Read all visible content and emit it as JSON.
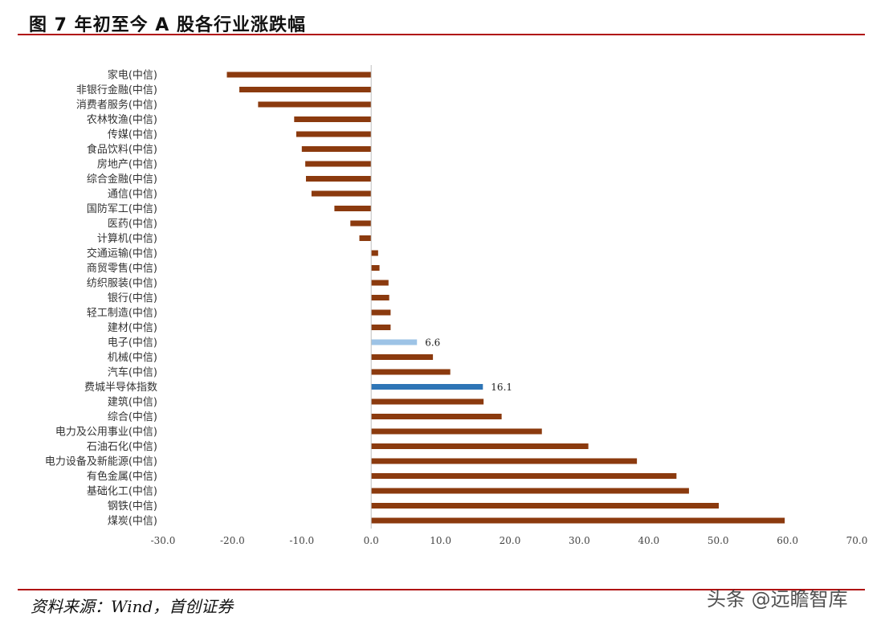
{
  "header": {
    "title": "图 7 年初至今 A 股各行业涨跌幅"
  },
  "footer": {
    "source": "资料来源：Wind，首创证券",
    "watermark": "头条 @远瞻智库"
  },
  "colors": {
    "bar": "#8B3A0E",
    "highlight_electronics": "#9DC3E6",
    "highlight_index": "#2E75B6",
    "rule": "#B00D0D",
    "axis": "#bfbfbf"
  },
  "chart_data": {
    "type": "bar",
    "orientation": "horizontal",
    "title": "",
    "xlabel": "",
    "ylabel": "",
    "xlim": [
      -30,
      70
    ],
    "x_ticks": [
      "-30.0",
      "-20.0",
      "-10.0",
      "0.0",
      "10.0",
      "20.0",
      "30.0",
      "40.0",
      "50.0",
      "60.0",
      "70.0"
    ],
    "grid": false,
    "categories": [
      "家电(中信)",
      "非银行金融(中信)",
      "消费者服务(中信)",
      "农林牧渔(中信)",
      "传媒(中信)",
      "食品饮料(中信)",
      "房地产(中信)",
      "综合金融(中信)",
      "通信(中信)",
      "国防军工(中信)",
      "医药(中信)",
      "计算机(中信)",
      "交通运输(中信)",
      "商贸零售(中信)",
      "纺织服装(中信)",
      "银行(中信)",
      "轻工制造(中信)",
      "建材(中信)",
      "电子(中信)",
      "机械(中信)",
      "汽车(中信)",
      "费城半导体指数",
      "建筑(中信)",
      "综合(中信)",
      "电力及公用事业(中信)",
      "石油石化(中信)",
      "电力设备及新能源(中信)",
      "有色金属(中信)",
      "基础化工(中信)",
      "钢铁(中信)",
      "煤炭(中信)"
    ],
    "values": [
      -20.8,
      -19.0,
      -16.3,
      -11.1,
      -10.8,
      -10.0,
      -9.5,
      -9.4,
      -8.6,
      -5.3,
      -3.0,
      -1.7,
      1.0,
      1.2,
      2.5,
      2.6,
      2.8,
      2.8,
      6.6,
      8.9,
      11.4,
      16.1,
      16.2,
      18.8,
      24.6,
      31.3,
      38.3,
      44.0,
      45.8,
      50.1,
      59.6
    ],
    "highlights": [
      {
        "category": "电子(中信)",
        "color": "#9DC3E6",
        "label": "6.6"
      },
      {
        "category": "费城半导体指数",
        "color": "#2E75B6",
        "label": "16.1"
      }
    ]
  }
}
